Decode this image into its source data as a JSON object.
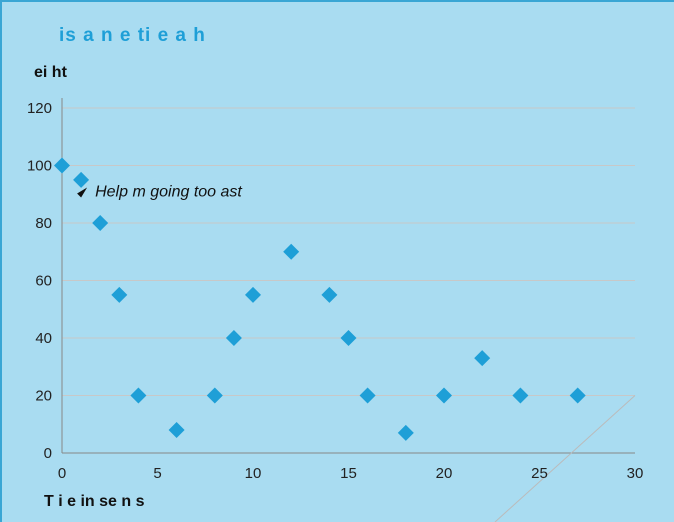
{
  "chart_data": {
    "type": "scatter",
    "title": "is a n e ti e a h",
    "xlabel": "T i e in se n s",
    "ylabel": "ei ht",
    "ylabel_unit": "",
    "xlim": [
      0,
      30
    ],
    "ylim": [
      0,
      120
    ],
    "x_ticks": [
      0,
      5,
      10,
      15,
      20,
      25,
      30
    ],
    "y_ticks": [
      0,
      20,
      40,
      60,
      80,
      100,
      120
    ],
    "grid": "horizontal",
    "marker": "diamond",
    "marker_color": "#1e9fd7",
    "points": [
      {
        "x": 0,
        "y": 100
      },
      {
        "x": 1,
        "y": 95
      },
      {
        "x": 2,
        "y": 80
      },
      {
        "x": 3,
        "y": 55
      },
      {
        "x": 4,
        "y": 20
      },
      {
        "x": 6,
        "y": 8
      },
      {
        "x": 8,
        "y": 20
      },
      {
        "x": 9,
        "y": 40
      },
      {
        "x": 10,
        "y": 55
      },
      {
        "x": 12,
        "y": 70
      },
      {
        "x": 14,
        "y": 55
      },
      {
        "x": 15,
        "y": 40
      },
      {
        "x": 16,
        "y": 20
      },
      {
        "x": 18,
        "y": 7
      },
      {
        "x": 20,
        "y": 20
      },
      {
        "x": 22,
        "y": 33
      },
      {
        "x": 24,
        "y": 20
      },
      {
        "x": 27,
        "y": 20
      }
    ],
    "annotation": {
      "text": "Help m going too ast",
      "x": 1,
      "y": 92
    }
  }
}
